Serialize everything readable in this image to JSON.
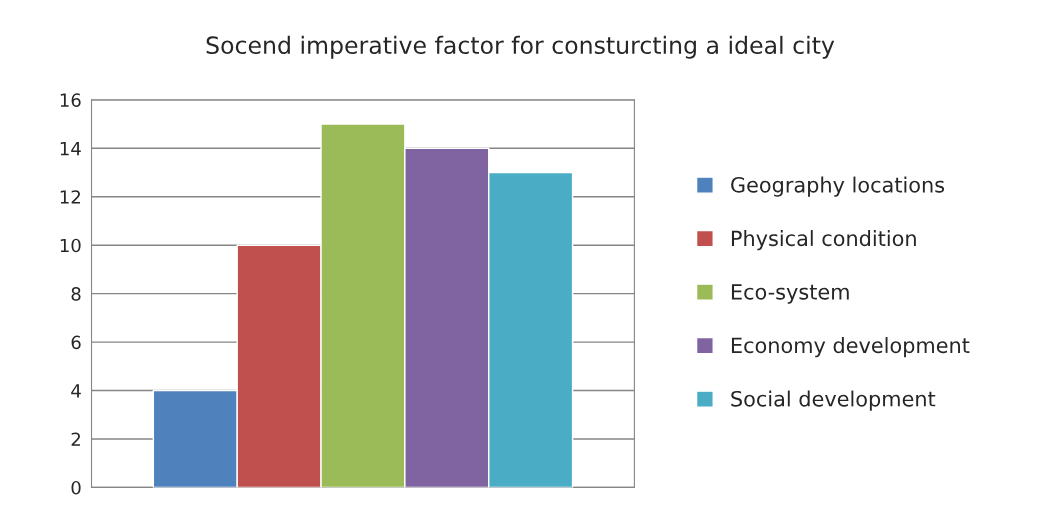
{
  "chart_data": {
    "type": "bar",
    "title": "Socend imperative factor for consturcting a ideal city",
    "categories": [
      null
    ],
    "series": [
      {
        "name": "Geography locations",
        "color": "#4f81bd",
        "values": [
          4
        ]
      },
      {
        "name": "Physical condition",
        "color": "#c0504d",
        "values": [
          10
        ]
      },
      {
        "name": "Eco-system",
        "color": "#9bbb59",
        "values": [
          15
        ]
      },
      {
        "name": "Economy development",
        "color": "#8064a2",
        "values": [
          14
        ]
      },
      {
        "name": "Social development",
        "color": "#4bacc6",
        "values": [
          13
        ]
      }
    ],
    "ylim": [
      0,
      16
    ],
    "yticks": [
      0,
      2,
      4,
      6,
      8,
      10,
      12,
      14,
      16
    ],
    "grid": "y",
    "legend": "right"
  }
}
